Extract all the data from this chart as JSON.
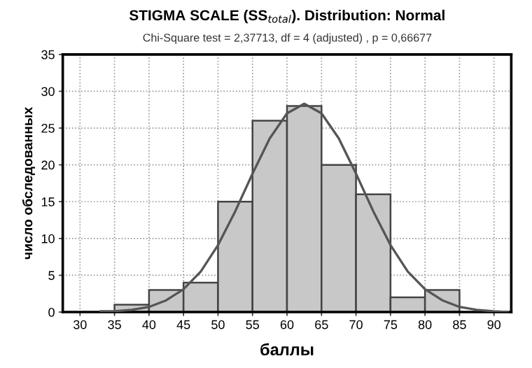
{
  "chart_data": {
    "type": "histogram",
    "title": "STIGMA SCALE (SS$_{total}$). Distribution: Normal",
    "subtitle": "Chi-Square test = 2,37713, df = 4 (adjusted) , p = 0,66677",
    "xlabel": "баллы",
    "ylabel": "число обследованных",
    "bins": [
      35,
      40,
      45,
      50,
      55,
      60,
      65,
      70,
      75,
      80,
      85
    ],
    "values": [
      1,
      3,
      4,
      15,
      26,
      28,
      20,
      16,
      2,
      3
    ],
    "color": "#c8c8c8",
    "series": [
      {
        "type": "line",
        "color": "#555555",
        "x": [
          33,
          35,
          37.5,
          40,
          42.5,
          45,
          47.5,
          50,
          52.5,
          55,
          57.5,
          60,
          62.5,
          65,
          67.5,
          70,
          72.5,
          75,
          77.5,
          80,
          82.5,
          85,
          87.5,
          90,
          92
        ],
        "values": [
          0.1,
          0.1,
          0.3,
          0.7,
          1.6,
          3.1,
          5.5,
          9.1,
          13.7,
          18.8,
          23.6,
          27.0,
          28.3,
          27.0,
          23.6,
          18.8,
          13.7,
          9.1,
          5.5,
          3.1,
          1.6,
          0.7,
          0.3,
          0.1,
          0.0
        ]
      }
    ],
    "xlim": [
      27.5,
      92.5
    ],
    "xticks": [
      30,
      35,
      40,
      45,
      50,
      55,
      60,
      65,
      70,
      75,
      80,
      85,
      90
    ],
    "ylim": [
      0,
      35
    ],
    "yticks": [
      0,
      5,
      10,
      15,
      20,
      25,
      30,
      35
    ],
    "grid": true
  }
}
